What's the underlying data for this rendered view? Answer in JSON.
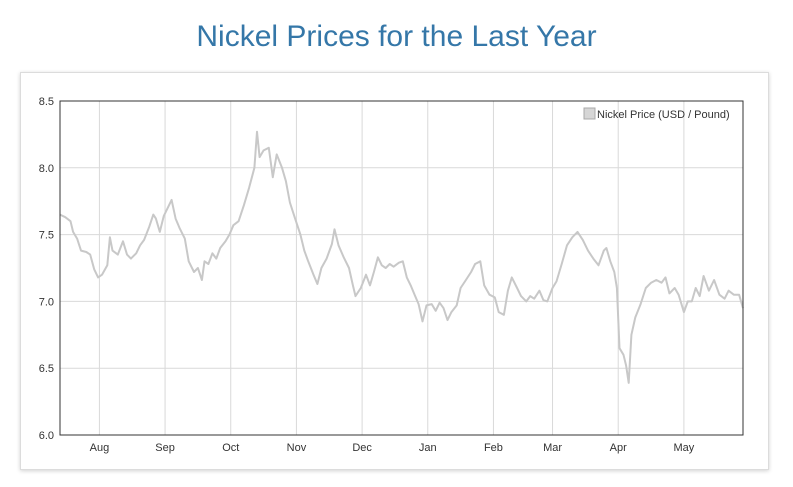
{
  "page": {
    "title": "Nickel Prices for the Last Year"
  },
  "colors": {
    "title": "#3577a8",
    "series_line": "#c8c8c8",
    "grid": "#d9d9d9",
    "axis": "#333333",
    "text": "#333333",
    "legend_swatch_fill": "#d6d6d6",
    "legend_swatch_border": "#a8a8a8"
  },
  "chart_data": {
    "type": "line",
    "title": "",
    "xlabel": "",
    "ylabel": "",
    "ylim": [
      6.0,
      8.5
    ],
    "y_ticks": [
      6.0,
      6.5,
      7.0,
      7.5,
      8.0,
      8.5
    ],
    "x_ticks": [
      "Aug",
      "Sep",
      "Oct",
      "Nov",
      "Dec",
      "Jan",
      "Feb",
      "Mar",
      "Apr",
      "May"
    ],
    "grid": true,
    "legend_position": "top-right",
    "series": [
      {
        "name": "Nickel Price (USD / Pound)",
        "x_domain": [
          0,
          52
        ],
        "x_tick_positions": [
          3,
          8,
          13,
          18,
          23,
          28,
          33,
          37.5,
          42.5,
          47.5
        ],
        "points": [
          [
            0,
            7.65
          ],
          [
            0.4,
            7.63
          ],
          [
            0.8,
            7.6
          ],
          [
            1.0,
            7.52
          ],
          [
            1.3,
            7.47
          ],
          [
            1.6,
            7.38
          ],
          [
            2.0,
            7.37
          ],
          [
            2.3,
            7.35
          ],
          [
            2.6,
            7.24
          ],
          [
            2.9,
            7.18
          ],
          [
            3.2,
            7.2
          ],
          [
            3.6,
            7.27
          ],
          [
            3.8,
            7.48
          ],
          [
            4.0,
            7.38
          ],
          [
            4.4,
            7.35
          ],
          [
            4.8,
            7.45
          ],
          [
            5.1,
            7.35
          ],
          [
            5.4,
            7.32
          ],
          [
            5.8,
            7.36
          ],
          [
            6.1,
            7.42
          ],
          [
            6.4,
            7.46
          ],
          [
            6.8,
            7.56
          ],
          [
            7.1,
            7.65
          ],
          [
            7.3,
            7.62
          ],
          [
            7.6,
            7.52
          ],
          [
            7.9,
            7.64
          ],
          [
            8.2,
            7.7
          ],
          [
            8.5,
            7.76
          ],
          [
            8.8,
            7.62
          ],
          [
            9.1,
            7.55
          ],
          [
            9.5,
            7.47
          ],
          [
            9.8,
            7.3
          ],
          [
            10.2,
            7.22
          ],
          [
            10.5,
            7.25
          ],
          [
            10.8,
            7.16
          ],
          [
            11.0,
            7.3
          ],
          [
            11.3,
            7.28
          ],
          [
            11.6,
            7.36
          ],
          [
            11.9,
            7.32
          ],
          [
            12.2,
            7.4
          ],
          [
            12.6,
            7.45
          ],
          [
            12.9,
            7.5
          ],
          [
            13.2,
            7.57
          ],
          [
            13.6,
            7.6
          ],
          [
            14.0,
            7.72
          ],
          [
            14.4,
            7.85
          ],
          [
            14.8,
            8.0
          ],
          [
            15.0,
            8.27
          ],
          [
            15.2,
            8.08
          ],
          [
            15.5,
            8.13
          ],
          [
            15.9,
            8.15
          ],
          [
            16.2,
            7.93
          ],
          [
            16.5,
            8.1
          ],
          [
            16.9,
            8.0
          ],
          [
            17.2,
            7.9
          ],
          [
            17.5,
            7.74
          ],
          [
            17.9,
            7.62
          ],
          [
            18.3,
            7.5
          ],
          [
            18.6,
            7.38
          ],
          [
            18.9,
            7.3
          ],
          [
            19.3,
            7.2
          ],
          [
            19.6,
            7.13
          ],
          [
            19.9,
            7.25
          ],
          [
            20.3,
            7.32
          ],
          [
            20.7,
            7.43
          ],
          [
            20.9,
            7.54
          ],
          [
            21.2,
            7.42
          ],
          [
            21.6,
            7.33
          ],
          [
            22.0,
            7.25
          ],
          [
            22.3,
            7.12
          ],
          [
            22.5,
            7.04
          ],
          [
            22.9,
            7.1
          ],
          [
            23.3,
            7.2
          ],
          [
            23.6,
            7.12
          ],
          [
            23.9,
            7.22
          ],
          [
            24.2,
            7.33
          ],
          [
            24.5,
            7.27
          ],
          [
            24.8,
            7.25
          ],
          [
            25.1,
            7.28
          ],
          [
            25.4,
            7.26
          ],
          [
            25.8,
            7.29
          ],
          [
            26.1,
            7.3
          ],
          [
            26.4,
            7.18
          ],
          [
            26.7,
            7.12
          ],
          [
            27.0,
            7.05
          ],
          [
            27.3,
            6.98
          ],
          [
            27.6,
            6.85
          ],
          [
            27.9,
            6.97
          ],
          [
            28.3,
            6.98
          ],
          [
            28.6,
            6.93
          ],
          [
            28.9,
            6.99
          ],
          [
            29.2,
            6.95
          ],
          [
            29.5,
            6.86
          ],
          [
            29.8,
            6.92
          ],
          [
            30.2,
            6.97
          ],
          [
            30.5,
            7.1
          ],
          [
            30.9,
            7.16
          ],
          [
            31.3,
            7.22
          ],
          [
            31.6,
            7.28
          ],
          [
            32.0,
            7.3
          ],
          [
            32.3,
            7.12
          ],
          [
            32.7,
            7.05
          ],
          [
            33.1,
            7.03
          ],
          [
            33.4,
            6.92
          ],
          [
            33.8,
            6.9
          ],
          [
            34.1,
            7.08
          ],
          [
            34.4,
            7.18
          ],
          [
            34.8,
            7.1
          ],
          [
            35.1,
            7.04
          ],
          [
            35.5,
            7.0
          ],
          [
            35.8,
            7.04
          ],
          [
            36.1,
            7.02
          ],
          [
            36.5,
            7.08
          ],
          [
            36.8,
            7.01
          ],
          [
            37.1,
            7.0
          ],
          [
            37.5,
            7.1
          ],
          [
            37.8,
            7.15
          ],
          [
            38.2,
            7.28
          ],
          [
            38.6,
            7.42
          ],
          [
            39.0,
            7.48
          ],
          [
            39.4,
            7.52
          ],
          [
            39.8,
            7.46
          ],
          [
            40.2,
            7.38
          ],
          [
            40.6,
            7.32
          ],
          [
            41.0,
            7.27
          ],
          [
            41.4,
            7.38
          ],
          [
            41.6,
            7.4
          ],
          [
            41.9,
            7.3
          ],
          [
            42.2,
            7.22
          ],
          [
            42.4,
            7.1
          ],
          [
            42.6,
            6.65
          ],
          [
            42.9,
            6.6
          ],
          [
            43.1,
            6.52
          ],
          [
            43.3,
            6.39
          ],
          [
            43.5,
            6.75
          ],
          [
            43.8,
            6.88
          ],
          [
            44.2,
            6.98
          ],
          [
            44.6,
            7.1
          ],
          [
            45.0,
            7.14
          ],
          [
            45.4,
            7.16
          ],
          [
            45.8,
            7.14
          ],
          [
            46.1,
            7.18
          ],
          [
            46.4,
            7.06
          ],
          [
            46.8,
            7.1
          ],
          [
            47.1,
            7.05
          ],
          [
            47.5,
            6.92
          ],
          [
            47.8,
            7.0
          ],
          [
            48.1,
            7.0
          ],
          [
            48.4,
            7.1
          ],
          [
            48.7,
            7.04
          ],
          [
            49.0,
            7.19
          ],
          [
            49.4,
            7.08
          ],
          [
            49.8,
            7.16
          ],
          [
            50.2,
            7.05
          ],
          [
            50.6,
            7.02
          ],
          [
            50.9,
            7.08
          ],
          [
            51.3,
            7.05
          ],
          [
            51.7,
            7.05
          ],
          [
            52.0,
            6.95
          ]
        ]
      }
    ]
  }
}
